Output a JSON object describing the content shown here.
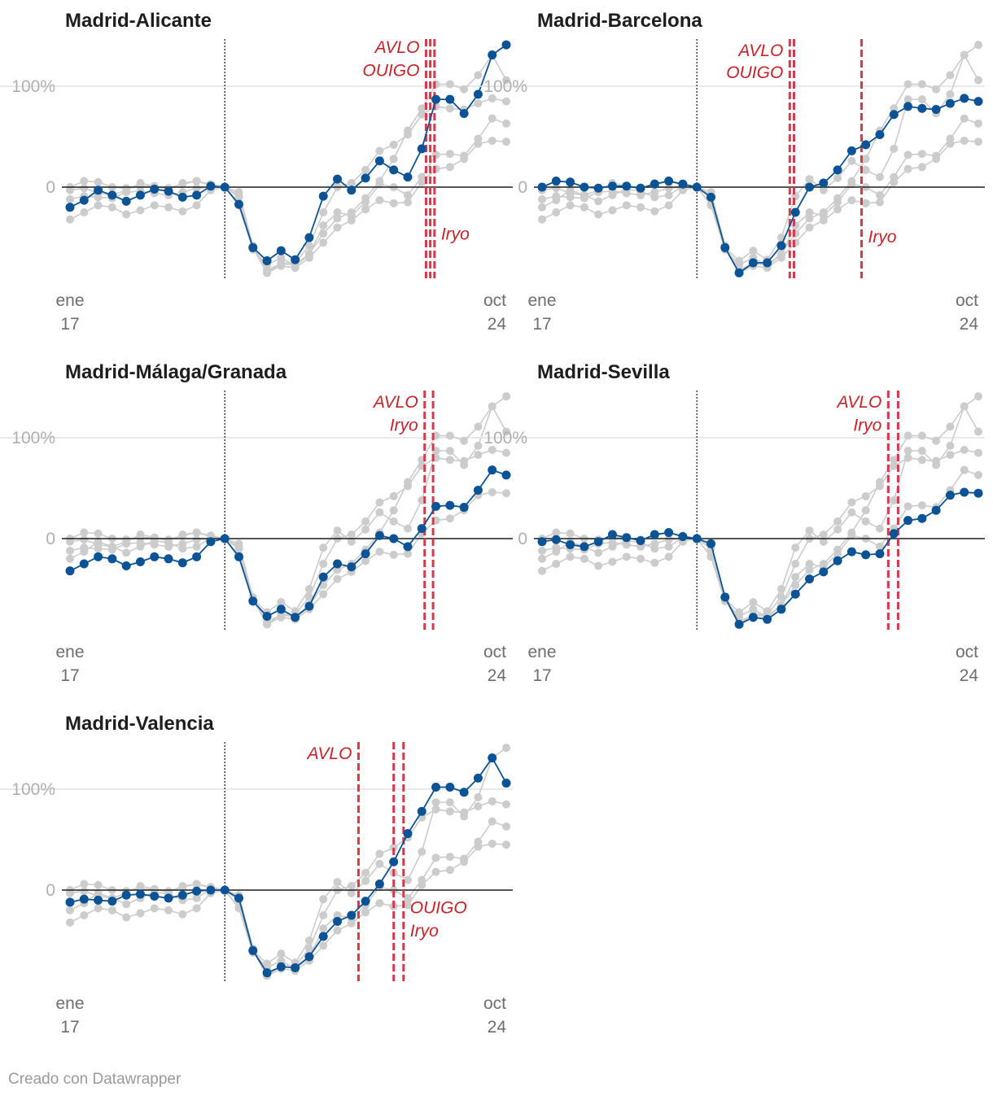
{
  "footer": {
    "credit": "Creado con Datawrapper"
  },
  "colors": {
    "highlight": "#0b5394",
    "background_series": "#cccccc",
    "event_line": "#d7394a",
    "annotation": "#c7222a",
    "gridline": "#e2e2e2",
    "baseline": "#1d1d1d"
  },
  "chart_data": [
    {
      "type": "line",
      "title": "Madrid-Alicante",
      "y_ticks": [
        {
          "label": "100%",
          "value": 100
        },
        {
          "label": "0",
          "value": 0
        }
      ],
      "x_start": {
        "month": "ene",
        "year": "17"
      },
      "x_end": {
        "month": "oct",
        "year": "24"
      },
      "reference_index": 11,
      "events": [
        {
          "index": 25.3,
          "label": "AVLO"
        },
        {
          "index": 25.6,
          "label": "OUIGO"
        },
        {
          "index": 25.9,
          "label": "Iryo"
        }
      ],
      "annotations": [
        {
          "text": "AVLO",
          "near_index": 25.3,
          "value": 133,
          "align": "end"
        },
        {
          "text": "OUIGO",
          "near_index": 25.3,
          "value": 110,
          "align": "end"
        },
        {
          "text": "Iryo",
          "near_index": 25.9,
          "value": -52,
          "align": "start"
        }
      ],
      "highlight_series": [
        -20,
        -13,
        -3,
        -8,
        -14,
        -8,
        -2,
        -4,
        -10,
        -8,
        1,
        0,
        -17,
        -60,
        -73,
        -63,
        -72,
        -50,
        -9,
        8,
        -3,
        9,
        26,
        17,
        10,
        38,
        87,
        87,
        73,
        92,
        131,
        141
      ]
    },
    {
      "type": "line",
      "title": "Madrid-Barcelona",
      "y_ticks": [
        {
          "label": "100%",
          "value": 100
        },
        {
          "label": "0",
          "value": 0
        }
      ],
      "x_start": {
        "month": "ene",
        "year": "17"
      },
      "x_end": {
        "month": "oct",
        "year": "24"
      },
      "reference_index": 11,
      "events": [
        {
          "index": 17.6,
          "label": "AVLO"
        },
        {
          "index": 17.9,
          "label": "OUIGO"
        },
        {
          "index": 22.7,
          "label": "Iryo"
        }
      ],
      "annotations": [
        {
          "text": "AVLO",
          "near_index": 17.6,
          "value": 130,
          "align": "end"
        },
        {
          "text": "OUIGO",
          "near_index": 17.6,
          "value": 108,
          "align": "end"
        },
        {
          "text": "Iryo",
          "near_index": 22.7,
          "value": -55,
          "align": "start"
        }
      ],
      "highlight_series": [
        0,
        6,
        5,
        0,
        -1,
        1,
        1,
        -1,
        3,
        6,
        3,
        0,
        -10,
        -60,
        -85,
        -75,
        -75,
        -58,
        -25,
        0,
        4,
        17,
        36,
        42,
        52,
        72,
        80,
        78,
        77,
        83,
        88,
        85
      ]
    },
    {
      "type": "line",
      "title": "Madrid-Málaga/Granada",
      "y_ticks": [
        {
          "label": "100%",
          "value": 100
        },
        {
          "label": "0",
          "value": 0
        }
      ],
      "x_start": {
        "month": "ene",
        "year": "17"
      },
      "x_end": {
        "month": "oct",
        "year": "24"
      },
      "reference_index": 11,
      "events": [
        {
          "index": 25.2,
          "label": "AVLO"
        },
        {
          "index": 25.8,
          "label": "Iryo"
        }
      ],
      "annotations": [
        {
          "text": "AVLO",
          "near_index": 25.2,
          "value": 130,
          "align": "end"
        },
        {
          "text": "Iryo",
          "near_index": 25.2,
          "value": 107,
          "align": "end"
        }
      ],
      "highlight_series": [
        -32,
        -25,
        -18,
        -20,
        -27,
        -23,
        -18,
        -20,
        -24,
        -18,
        -3,
        0,
        -18,
        -62,
        -77,
        -70,
        -78,
        -67,
        -38,
        -25,
        -28,
        -15,
        3,
        0,
        -8,
        10,
        32,
        33,
        31,
        48,
        68,
        63
      ]
    },
    {
      "type": "line",
      "title": "Madrid-Sevilla",
      "y_ticks": [
        {
          "label": "100%",
          "value": 100
        },
        {
          "label": "0",
          "value": 0
        }
      ],
      "x_start": {
        "month": "ene",
        "year": "17"
      },
      "x_end": {
        "month": "oct",
        "year": "24"
      },
      "reference_index": 11,
      "events": [
        {
          "index": 24.6,
          "label": "AVLO"
        },
        {
          "index": 25.3,
          "label": "Iryo"
        }
      ],
      "annotations": [
        {
          "text": "AVLO",
          "near_index": 24.6,
          "value": 130,
          "align": "end"
        },
        {
          "text": "Iryo",
          "near_index": 24.6,
          "value": 107,
          "align": "end"
        }
      ],
      "highlight_series": [
        -3,
        -1,
        -6,
        -8,
        -3,
        4,
        1,
        -2,
        4,
        6,
        2,
        0,
        -5,
        -58,
        -85,
        -78,
        -80,
        -70,
        -55,
        -40,
        -33,
        -22,
        -13,
        -16,
        -15,
        5,
        18,
        20,
        28,
        43,
        46,
        45
      ]
    },
    {
      "type": "line",
      "title": "Madrid-Valencia",
      "y_ticks": [
        {
          "label": "100%",
          "value": 100
        },
        {
          "label": "0",
          "value": 0
        }
      ],
      "x_start": {
        "month": "ene",
        "year": "17"
      },
      "x_end": {
        "month": "oct",
        "year": "24"
      },
      "reference_index": 11,
      "events": [
        {
          "index": 20.5,
          "label": "AVLO"
        },
        {
          "index": 23.0,
          "label": "OUIGO"
        },
        {
          "index": 23.7,
          "label": "Iryo"
        }
      ],
      "annotations": [
        {
          "text": "AVLO",
          "near_index": 20.5,
          "value": 130,
          "align": "end"
        },
        {
          "text": "OUIGO",
          "near_index": 23.7,
          "value": -23,
          "align": "start"
        },
        {
          "text": "Iryo",
          "near_index": 23.7,
          "value": -46,
          "align": "start"
        }
      ],
      "highlight_series": [
        -12,
        -9,
        -10,
        -11,
        -5,
        -4,
        -6,
        -8,
        -5,
        -1,
        0,
        0,
        -8,
        -60,
        -82,
        -76,
        -77,
        -66,
        -46,
        -31,
        -25,
        -11,
        6,
        28,
        56,
        78,
        102,
        102,
        97,
        111,
        131,
        106
      ]
    }
  ],
  "background_series": [
    [
      -20,
      -13,
      -3,
      -8,
      -14,
      -8,
      -2,
      -4,
      -10,
      -8,
      1,
      0,
      -17,
      -60,
      -73,
      -63,
      -72,
      -50,
      -9,
      8,
      -3,
      9,
      26,
      17,
      10,
      38,
      87,
      87,
      73,
      92,
      131,
      141
    ],
    [
      0,
      6,
      5,
      0,
      -1,
      1,
      1,
      -1,
      3,
      6,
      3,
      0,
      -10,
      -60,
      -85,
      -75,
      -75,
      -58,
      -25,
      0,
      4,
      17,
      36,
      42,
      52,
      72,
      80,
      78,
      77,
      83,
      88,
      85
    ],
    [
      -32,
      -25,
      -18,
      -20,
      -27,
      -23,
      -18,
      -20,
      -24,
      -18,
      -3,
      0,
      -18,
      -62,
      -77,
      -70,
      -78,
      -67,
      -38,
      -25,
      -28,
      -15,
      3,
      0,
      -8,
      10,
      32,
      33,
      31,
      48,
      68,
      63
    ],
    [
      -3,
      -1,
      -6,
      -8,
      -3,
      4,
      1,
      -2,
      4,
      6,
      2,
      0,
      -5,
      -58,
      -85,
      -78,
      -80,
      -70,
      -55,
      -40,
      -33,
      -22,
      -13,
      -16,
      -15,
      5,
      18,
      20,
      28,
      43,
      46,
      45
    ],
    [
      -12,
      -9,
      -10,
      -11,
      -5,
      -4,
      -6,
      -8,
      -5,
      -1,
      0,
      0,
      -8,
      -60,
      -82,
      -76,
      -77,
      -66,
      -46,
      -31,
      -25,
      -11,
      6,
      28,
      56,
      78,
      102,
      102,
      97,
      111,
      131,
      106
    ]
  ]
}
